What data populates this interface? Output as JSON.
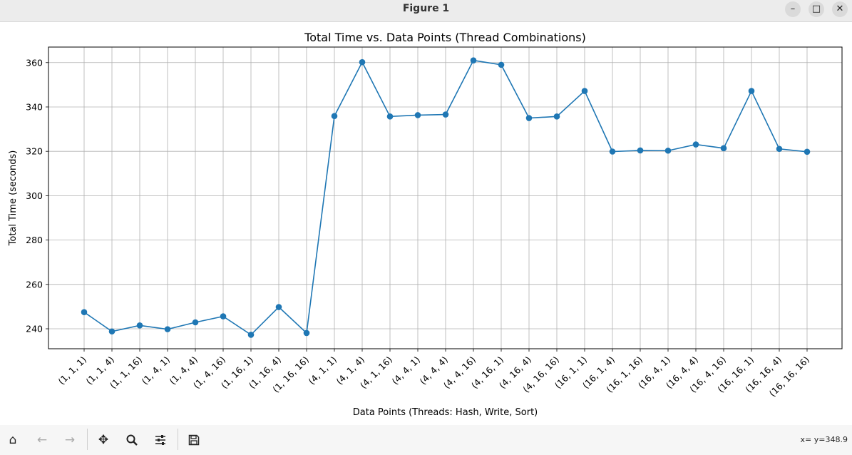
{
  "window": {
    "title": "Figure 1"
  },
  "toolbar": {
    "home_icon": "home-icon",
    "back_icon": "back-arrow-icon",
    "forward_icon": "forward-arrow-icon",
    "pan_icon": "move-icon",
    "zoom_icon": "search-icon",
    "config_icon": "sliders-icon",
    "save_icon": "floppy-icon",
    "coords": "x= y=348.9"
  },
  "colors": {
    "line": "#1f77b4",
    "grid": "#b0b0b0"
  },
  "chart_data": {
    "type": "line",
    "title": "Total Time vs. Data Points (Thread Combinations)",
    "xlabel": "Data Points (Threads: Hash, Write, Sort)",
    "ylabel": "Total Time (seconds)",
    "ylim": [
      231,
      367
    ],
    "yticks": [
      240,
      260,
      280,
      300,
      320,
      340,
      360
    ],
    "grid": true,
    "categories": [
      "(1, 1, 1)",
      "(1, 1, 4)",
      "(1, 1, 16)",
      "(1, 4, 1)",
      "(1, 4, 4)",
      "(1, 4, 16)",
      "(1, 16, 1)",
      "(1, 16, 4)",
      "(1, 16, 16)",
      "(4, 1, 1)",
      "(4, 1, 4)",
      "(4, 1, 16)",
      "(4, 4, 1)",
      "(4, 4, 4)",
      "(4, 4, 16)",
      "(4, 16, 1)",
      "(4, 16, 4)",
      "(4, 16, 16)",
      "(16, 1, 1)",
      "(16, 1, 4)",
      "(16, 1, 16)",
      "(16, 4, 1)",
      "(16, 4, 4)",
      "(16, 4, 16)",
      "(16, 16, 1)",
      "(16, 16, 4)",
      "(16, 16, 16)"
    ],
    "values": [
      247.5,
      238.8,
      241.5,
      239.8,
      242.9,
      245.6,
      237.3,
      249.8,
      238.1,
      335.9,
      360.2,
      335.7,
      336.3,
      336.6,
      361.0,
      359.0,
      335.0,
      335.7,
      347.2,
      319.9,
      320.4,
      320.3,
      323.1,
      321.4,
      347.2,
      321.1,
      319.8
    ]
  }
}
